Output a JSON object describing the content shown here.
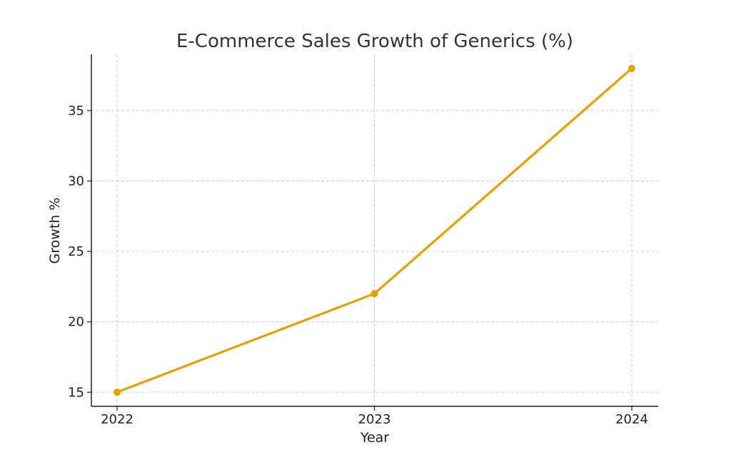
{
  "chart_data": {
    "type": "line",
    "title": "E-Commerce Sales Growth of Generics (%)",
    "xlabel": "Year",
    "ylabel": "Growth %",
    "x": [
      "2022",
      "2023",
      "2024"
    ],
    "series": [
      {
        "values": [
          15,
          22,
          38
        ],
        "color": "#E69F00"
      }
    ],
    "ylim": [
      14,
      39
    ],
    "yticks": [
      "15",
      "20",
      "25",
      "30",
      "35"
    ],
    "grid": true,
    "markers": "circle"
  }
}
